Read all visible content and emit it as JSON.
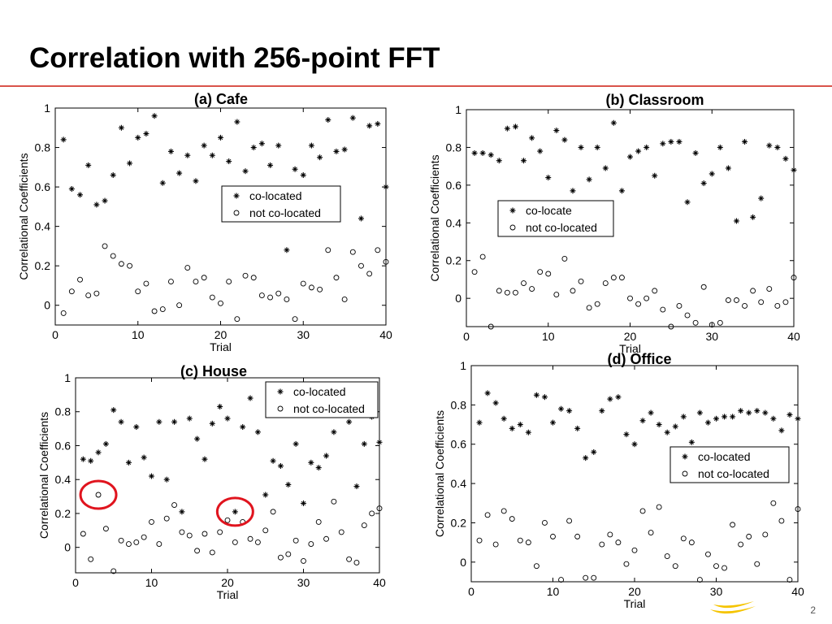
{
  "slide": {
    "title": "Correlation with 256-point FFT",
    "page_number": "2",
    "accent_color": "#d9534a",
    "highlight_color": "#e0141e",
    "logo_color": "#f5c400"
  },
  "chart_data": [
    {
      "type": "scatter",
      "title": "(a) Cafe",
      "xlabel": "Trial",
      "ylabel": "Correlational Coefficients",
      "xlim": [
        0,
        40
      ],
      "ylim": [
        -0.1,
        1.0
      ],
      "xticks": [
        0,
        10,
        20,
        30,
        40
      ],
      "yticks": [
        0,
        0.2,
        0.4,
        0.6,
        0.8,
        1
      ],
      "yticklabels": [
        "0",
        "0.2",
        "0.4",
        "0.6",
        "0.8",
        "1"
      ],
      "legend_position": "middle-right",
      "series": [
        {
          "name": "co-located",
          "marker": "star",
          "x": [
            1,
            2,
            3,
            4,
            5,
            6,
            7,
            8,
            9,
            10,
            11,
            12,
            13,
            14,
            15,
            16,
            17,
            18,
            19,
            20,
            21,
            22,
            23,
            24,
            25,
            26,
            27,
            28,
            29,
            30,
            31,
            32,
            33,
            34,
            35,
            36,
            37,
            38,
            39,
            40
          ],
          "y": [
            0.84,
            0.59,
            0.56,
            0.71,
            0.51,
            0.53,
            0.66,
            0.9,
            0.72,
            0.85,
            0.87,
            0.96,
            0.62,
            0.78,
            0.67,
            0.76,
            0.63,
            0.81,
            0.76,
            0.85,
            0.73,
            0.93,
            0.68,
            0.8,
            0.82,
            0.71,
            0.81,
            0.28,
            0.69,
            0.66,
            0.81,
            0.75,
            0.94,
            0.78,
            0.79,
            0.95,
            0.44,
            0.91,
            0.92,
            0.6
          ]
        },
        {
          "name": "not co-located",
          "marker": "circle",
          "x": [
            1,
            2,
            3,
            4,
            5,
            6,
            7,
            8,
            9,
            10,
            11,
            12,
            13,
            14,
            15,
            16,
            17,
            18,
            19,
            20,
            21,
            22,
            23,
            24,
            25,
            26,
            27,
            28,
            29,
            30,
            31,
            32,
            33,
            34,
            35,
            36,
            37,
            38,
            39,
            40
          ],
          "y": [
            -0.04,
            0.07,
            0.13,
            0.05,
            0.06,
            0.3,
            0.25,
            0.21,
            0.2,
            0.07,
            0.11,
            -0.03,
            -0.02,
            0.12,
            0.0,
            0.19,
            0.12,
            0.14,
            0.04,
            0.01,
            0.12,
            -0.07,
            0.15,
            0.14,
            0.05,
            0.04,
            0.06,
            0.03,
            -0.07,
            0.11,
            0.09,
            0.08,
            0.28,
            0.14,
            0.03,
            0.27,
            0.2,
            0.16,
            0.28,
            0.22
          ]
        }
      ]
    },
    {
      "type": "scatter",
      "title": "(b) Classroom",
      "xlabel": "Trial",
      "ylabel": "Correlational Coefficients",
      "xlim": [
        0,
        40
      ],
      "ylim": [
        -0.15,
        1.0
      ],
      "xticks": [
        0,
        10,
        20,
        30,
        40
      ],
      "yticks": [
        0,
        0.2,
        0.4,
        0.6,
        0.8,
        1
      ],
      "yticklabels": [
        "0",
        "0.2",
        "0.4",
        "0.6",
        "0.8",
        "1"
      ],
      "legend_position": "middle-left",
      "series": [
        {
          "name": "co-locate",
          "marker": "star",
          "x": [
            1,
            2,
            3,
            4,
            5,
            6,
            7,
            8,
            9,
            10,
            11,
            12,
            13,
            14,
            15,
            16,
            17,
            18,
            19,
            20,
            21,
            22,
            23,
            24,
            25,
            26,
            27,
            28,
            29,
            30,
            31,
            32,
            33,
            34,
            35,
            36,
            37,
            38,
            39,
            40
          ],
          "y": [
            0.77,
            0.77,
            0.76,
            0.73,
            0.9,
            0.91,
            0.73,
            0.85,
            0.78,
            0.64,
            0.89,
            0.84,
            0.57,
            0.8,
            0.63,
            0.8,
            0.69,
            0.93,
            0.57,
            0.75,
            0.78,
            0.8,
            0.65,
            0.82,
            0.83,
            0.83,
            0.51,
            0.77,
            0.61,
            0.66,
            0.8,
            0.69,
            0.41,
            0.83,
            0.43,
            0.53,
            0.81,
            0.8,
            0.74,
            0.68
          ]
        },
        {
          "name": "not co-located",
          "marker": "circle",
          "x": [
            1,
            2,
            3,
            4,
            5,
            6,
            7,
            8,
            9,
            10,
            11,
            12,
            13,
            14,
            15,
            16,
            17,
            18,
            19,
            20,
            21,
            22,
            23,
            24,
            25,
            26,
            27,
            28,
            29,
            30,
            31,
            32,
            33,
            34,
            35,
            36,
            37,
            38,
            39,
            40
          ],
          "y": [
            0.14,
            0.22,
            -0.15,
            0.04,
            0.03,
            0.03,
            0.08,
            0.05,
            0.14,
            0.13,
            0.02,
            0.21,
            0.04,
            0.09,
            -0.05,
            -0.03,
            0.08,
            0.11,
            0.11,
            0.0,
            -0.03,
            0.0,
            0.04,
            -0.06,
            -0.15,
            -0.04,
            -0.09,
            -0.13,
            0.06,
            -0.14,
            -0.13,
            -0.01,
            -0.01,
            -0.04,
            0.04,
            -0.02,
            0.05,
            -0.04,
            -0.02,
            0.11
          ]
        }
      ]
    },
    {
      "type": "scatter",
      "title": "(c) House",
      "xlabel": "Trial",
      "ylabel": "Correlational Coefficients",
      "xlim": [
        0,
        40
      ],
      "ylim": [
        -0.15,
        1.0
      ],
      "xticks": [
        0,
        10,
        20,
        30,
        40
      ],
      "yticks": [
        0,
        0.2,
        0.4,
        0.6,
        0.8,
        1
      ],
      "yticklabels": [
        "0",
        "0.2",
        "0.4",
        "0.6",
        "0.8",
        "1"
      ],
      "legend_position": "top-right",
      "highlighted_points": [
        {
          "series": "not co-located",
          "x": 3,
          "y": 0.31
        },
        {
          "series": "co-located",
          "x": 21,
          "y": 0.21
        }
      ],
      "series": [
        {
          "name": "co-located",
          "marker": "star",
          "x": [
            1,
            2,
            3,
            4,
            5,
            6,
            7,
            8,
            9,
            10,
            11,
            12,
            13,
            14,
            15,
            16,
            17,
            18,
            19,
            20,
            21,
            22,
            23,
            24,
            25,
            26,
            27,
            28,
            29,
            30,
            31,
            32,
            33,
            34,
            35,
            36,
            37,
            38,
            39,
            40
          ],
          "y": [
            0.52,
            0.51,
            0.56,
            0.61,
            0.81,
            0.74,
            0.5,
            0.71,
            0.53,
            0.42,
            0.74,
            0.4,
            0.74,
            0.21,
            0.76,
            0.64,
            0.52,
            0.73,
            0.83,
            0.76,
            0.21,
            0.71,
            0.88,
            0.68,
            0.31,
            0.51,
            0.48,
            0.37,
            0.61,
            0.26,
            0.5,
            0.47,
            0.54,
            0.68,
            0.82,
            0.74,
            0.36,
            0.61,
            0.77,
            0.62
          ]
        },
        {
          "name": "not co-located",
          "marker": "circle",
          "x": [
            1,
            2,
            3,
            4,
            5,
            6,
            7,
            8,
            9,
            10,
            11,
            12,
            13,
            14,
            15,
            16,
            17,
            18,
            19,
            20,
            21,
            22,
            23,
            24,
            25,
            26,
            27,
            28,
            29,
            30,
            31,
            32,
            33,
            34,
            35,
            36,
            37,
            38,
            39,
            40
          ],
          "y": [
            0.08,
            -0.07,
            0.31,
            0.11,
            -0.14,
            0.04,
            0.02,
            0.03,
            0.06,
            0.15,
            0.02,
            0.17,
            0.25,
            0.09,
            0.07,
            -0.02,
            0.08,
            -0.03,
            0.09,
            0.16,
            0.03,
            0.15,
            0.05,
            0.03,
            0.1,
            0.21,
            -0.06,
            -0.04,
            0.04,
            -0.08,
            0.02,
            0.15,
            0.05,
            0.27,
            0.09,
            -0.07,
            -0.09,
            0.13,
            0.2,
            0.23
          ]
        }
      ]
    },
    {
      "type": "scatter",
      "title": "(d) Office",
      "xlabel": "Trial",
      "ylabel": "Correlational Coefficients",
      "xlim": [
        0,
        40
      ],
      "ylim": [
        -0.1,
        1.0
      ],
      "xticks": [
        0,
        10,
        20,
        30,
        40
      ],
      "yticks": [
        0,
        0.2,
        0.4,
        0.6,
        0.8,
        1
      ],
      "yticklabels": [
        "0",
        "0.2",
        "0.4",
        "0.6",
        "0.8",
        "1"
      ],
      "legend_position": "middle-right",
      "series": [
        {
          "name": "co-located",
          "marker": "star",
          "x": [
            1,
            2,
            3,
            4,
            5,
            6,
            7,
            8,
            9,
            10,
            11,
            12,
            13,
            14,
            15,
            16,
            17,
            18,
            19,
            20,
            21,
            22,
            23,
            24,
            25,
            26,
            27,
            28,
            29,
            30,
            31,
            32,
            33,
            34,
            35,
            36,
            37,
            38,
            39,
            40
          ],
          "y": [
            0.71,
            0.86,
            0.81,
            0.73,
            0.68,
            0.7,
            0.66,
            0.85,
            0.84,
            0.71,
            0.78,
            0.77,
            0.68,
            0.53,
            0.56,
            0.77,
            0.83,
            0.84,
            0.65,
            0.6,
            0.72,
            0.76,
            0.7,
            0.66,
            0.69,
            0.74,
            0.61,
            0.76,
            0.71,
            0.73,
            0.74,
            0.74,
            0.77,
            0.76,
            0.77,
            0.76,
            0.73,
            0.67,
            0.75,
            0.73
          ]
        },
        {
          "name": "not co-located",
          "marker": "circle",
          "x": [
            1,
            2,
            3,
            4,
            5,
            6,
            7,
            8,
            9,
            10,
            11,
            12,
            13,
            14,
            15,
            16,
            17,
            18,
            19,
            20,
            21,
            22,
            23,
            24,
            25,
            26,
            27,
            28,
            29,
            30,
            31,
            32,
            33,
            34,
            35,
            36,
            37,
            38,
            39,
            40
          ],
          "y": [
            0.11,
            0.24,
            0.09,
            0.26,
            0.22,
            0.11,
            0.1,
            -0.02,
            0.2,
            0.13,
            -0.09,
            0.21,
            0.13,
            -0.08,
            -0.08,
            0.09,
            0.14,
            0.1,
            -0.01,
            0.06,
            0.26,
            0.15,
            0.28,
            0.03,
            -0.02,
            0.12,
            0.1,
            -0.09,
            0.04,
            -0.02,
            -0.03,
            0.19,
            0.09,
            0.13,
            -0.01,
            0.14,
            0.3,
            0.21,
            -0.09,
            0.27
          ]
        }
      ]
    }
  ]
}
